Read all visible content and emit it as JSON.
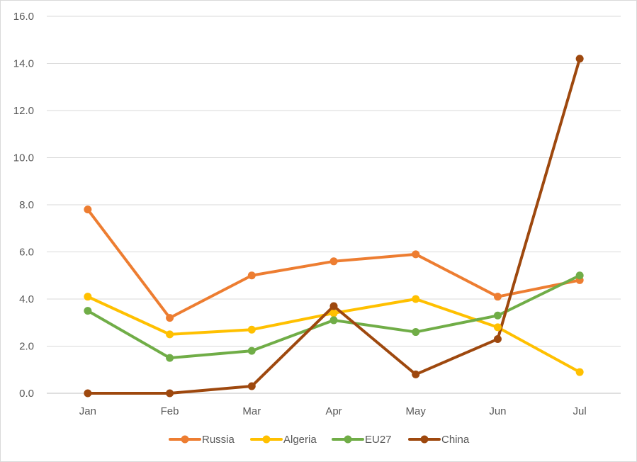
{
  "chart_data": {
    "type": "line",
    "title": "",
    "xlabel": "",
    "ylabel": "",
    "categories": [
      "Jan",
      "Feb",
      "Mar",
      "Apr",
      "May",
      "Jun",
      "Jul"
    ],
    "ylim": [
      0,
      16
    ],
    "ytick_labels": [
      "0.0",
      "2.0",
      "4.0",
      "6.0",
      "8.0",
      "10.0",
      "12.0",
      "14.0",
      "16.0"
    ],
    "grid": true,
    "legend_position": "bottom",
    "series": [
      {
        "name": "Russia",
        "color": "#ED7D31",
        "values": [
          7.8,
          3.2,
          5.0,
          5.6,
          5.9,
          4.1,
          4.8
        ]
      },
      {
        "name": "Algeria",
        "color": "#FFC000",
        "values": [
          4.1,
          2.5,
          2.7,
          3.4,
          4.0,
          2.8,
          0.9
        ]
      },
      {
        "name": "EU27",
        "color": "#70AD47",
        "values": [
          3.5,
          1.5,
          1.8,
          3.1,
          2.6,
          3.3,
          5.0
        ]
      },
      {
        "name": "China",
        "color": "#9E480E",
        "values": [
          0.0,
          0.0,
          0.3,
          3.7,
          0.8,
          2.3,
          14.2
        ]
      }
    ]
  }
}
